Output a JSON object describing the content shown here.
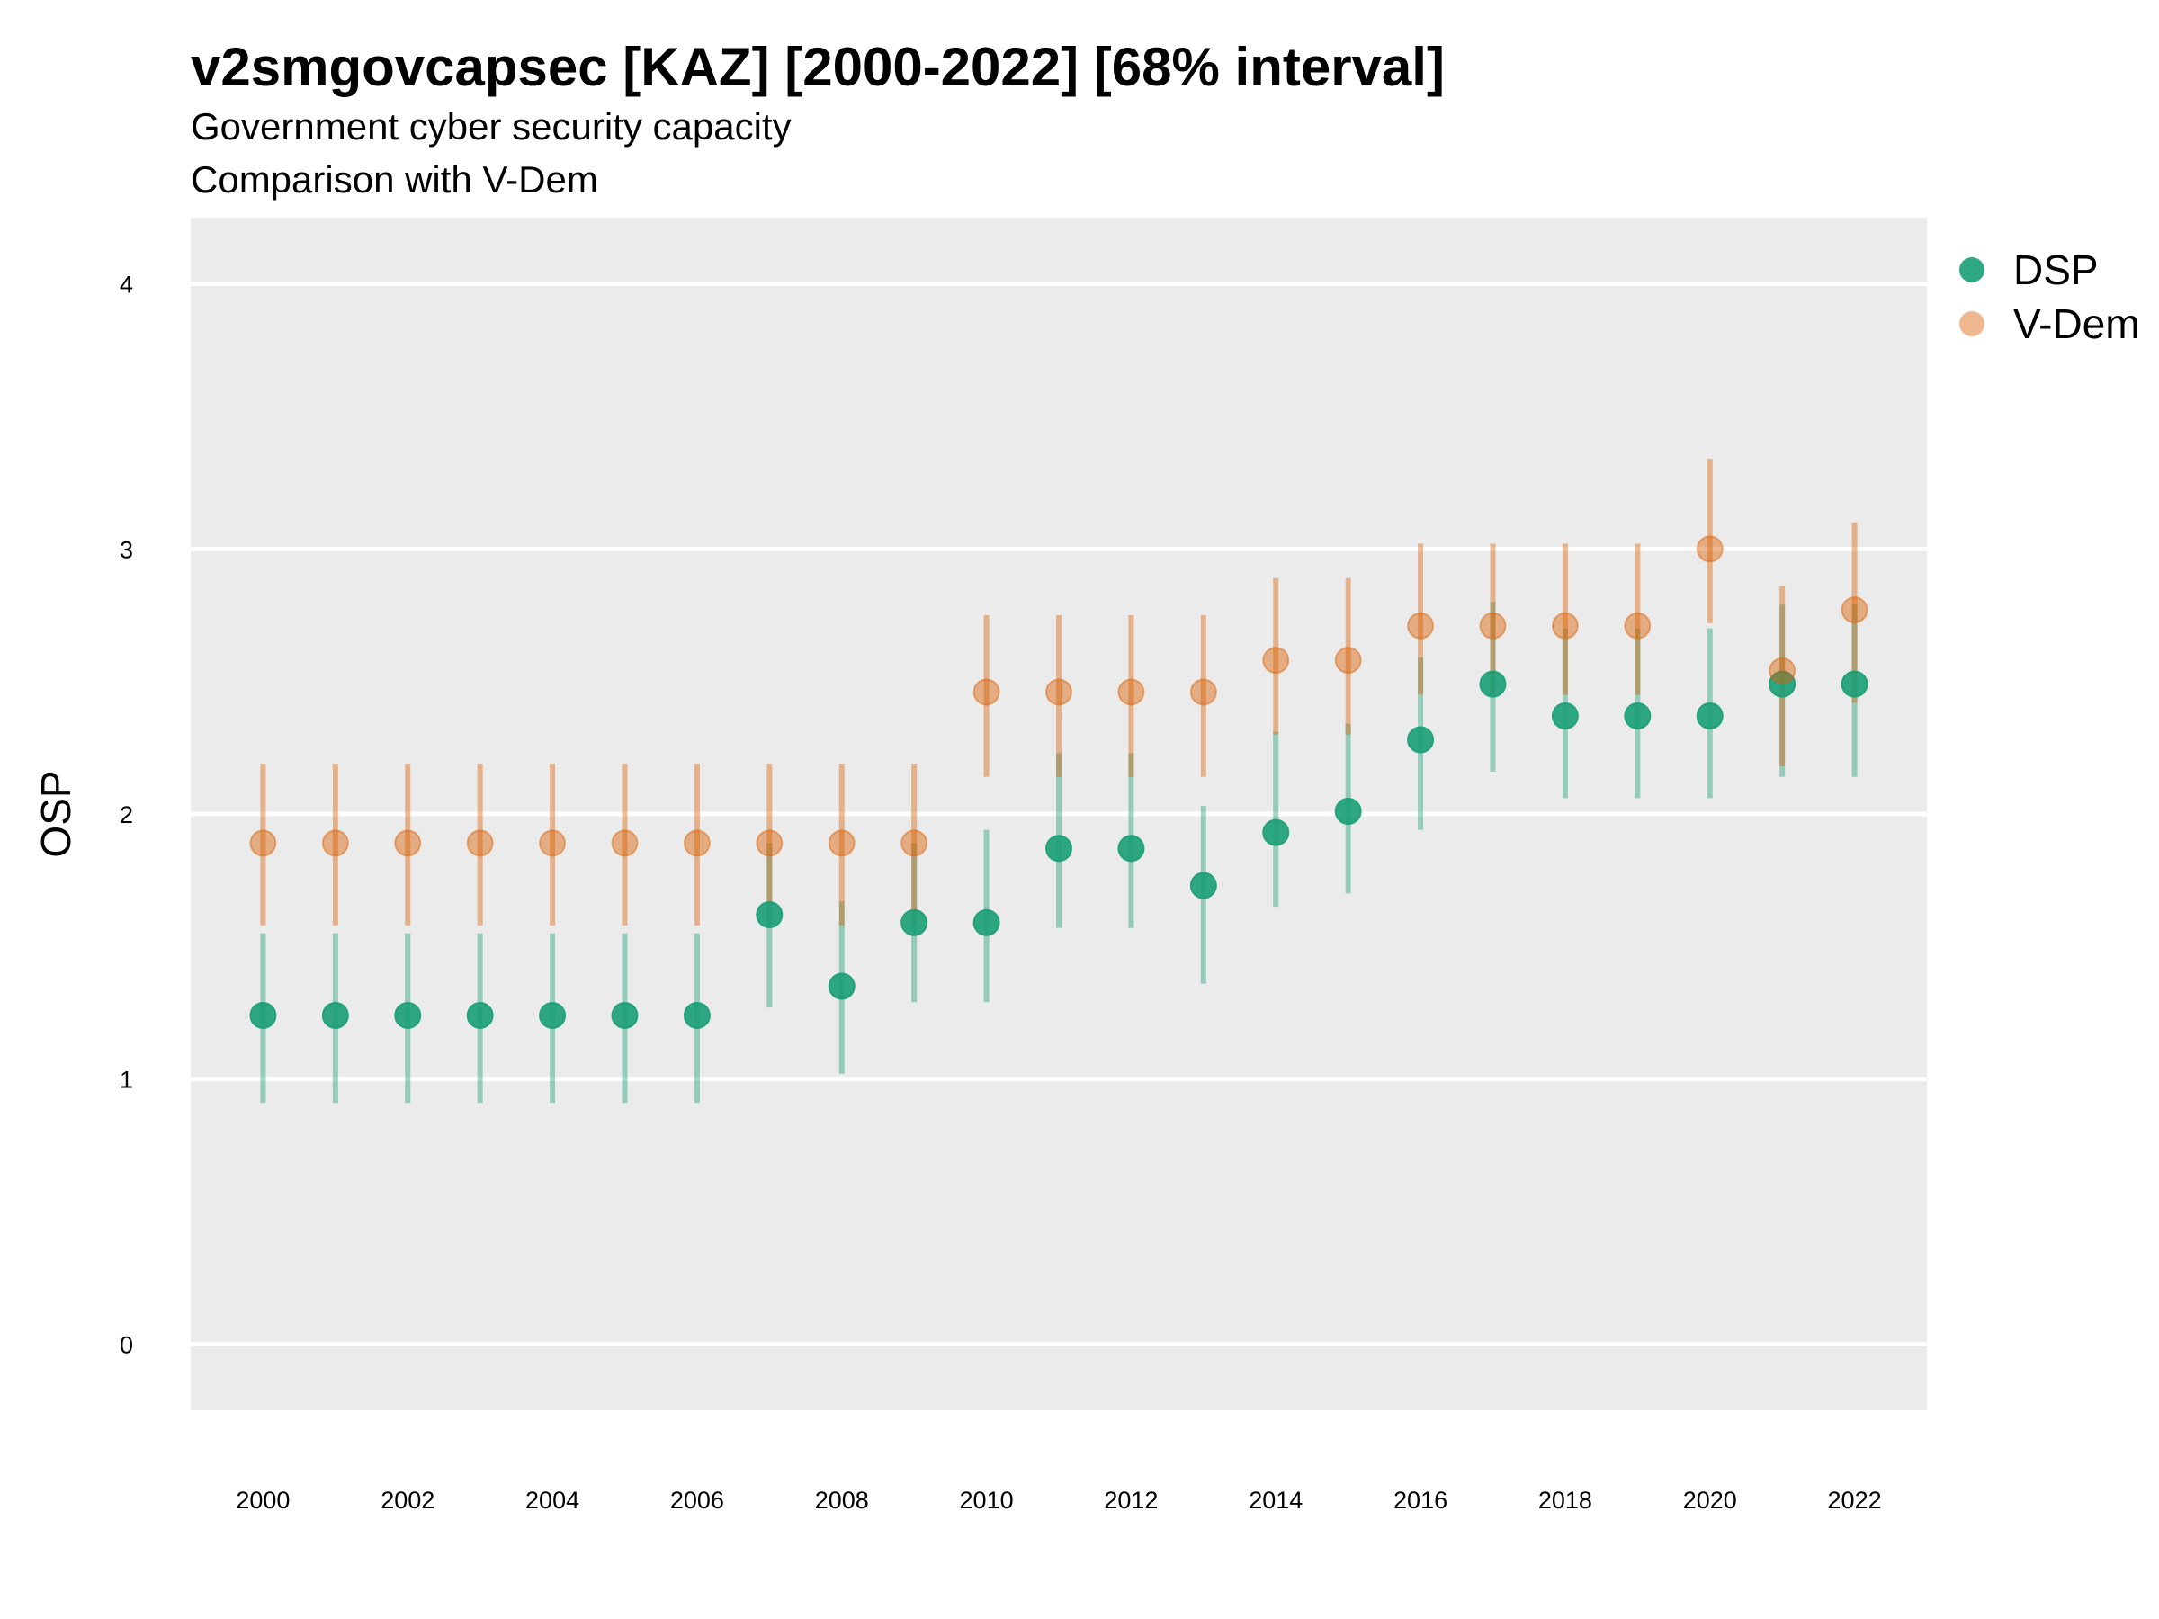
{
  "chart_data": {
    "type": "scatter",
    "title": "v2smgovcapsec [KAZ] [2000-2022] [68% interval]",
    "subtitle": "Government cyber security capacity",
    "subtitle2": "Comparison with V-Dem",
    "ylabel": "OSP",
    "xlabel": "",
    "ylim": [
      -0.25,
      4.25
    ],
    "xlim": [
      1999,
      2023
    ],
    "y_ticks": [
      "0",
      "1",
      "2",
      "3",
      "4"
    ],
    "x_ticks": [
      "2000",
      "2002",
      "2004",
      "2006",
      "2008",
      "2010",
      "2012",
      "2014",
      "2016",
      "2018",
      "2020",
      "2022"
    ],
    "grid": true,
    "legend_position": "right",
    "x": [
      2000,
      2001,
      2002,
      2003,
      2004,
      2005,
      2006,
      2007,
      2008,
      2009,
      2010,
      2011,
      2012,
      2013,
      2014,
      2015,
      2016,
      2017,
      2018,
      2019,
      2020,
      2021,
      2022
    ],
    "series": [
      {
        "name": "DSP",
        "color": "#1b9e77",
        "values": [
          1.24,
          1.24,
          1.24,
          1.24,
          1.24,
          1.24,
          1.24,
          1.62,
          1.35,
          1.59,
          1.59,
          1.87,
          1.87,
          1.73,
          1.93,
          2.01,
          2.28,
          2.49,
          2.37,
          2.37,
          2.37,
          2.49,
          2.49
        ],
        "lower": [
          0.91,
          0.91,
          0.91,
          0.91,
          0.91,
          0.91,
          0.91,
          1.27,
          1.02,
          1.29,
          1.29,
          1.57,
          1.57,
          1.36,
          1.65,
          1.7,
          1.94,
          2.16,
          2.06,
          2.06,
          2.06,
          2.14,
          2.14
        ],
        "upper": [
          1.55,
          1.55,
          1.55,
          1.55,
          1.55,
          1.55,
          1.55,
          1.89,
          1.67,
          1.89,
          1.94,
          2.23,
          2.23,
          2.03,
          2.31,
          2.34,
          2.59,
          2.8,
          2.7,
          2.7,
          2.7,
          2.79,
          2.79
        ]
      },
      {
        "name": "V-Dem",
        "color": "#d95f02",
        "values": [
          1.89,
          1.89,
          1.89,
          1.89,
          1.89,
          1.89,
          1.89,
          1.89,
          1.89,
          1.89,
          2.46,
          2.46,
          2.46,
          2.46,
          2.58,
          2.58,
          2.71,
          2.71,
          2.71,
          2.71,
          3.0,
          2.54,
          2.77
        ],
        "lower": [
          1.58,
          1.58,
          1.58,
          1.58,
          1.58,
          1.58,
          1.58,
          1.58,
          1.58,
          1.58,
          2.14,
          2.14,
          2.14,
          2.14,
          2.3,
          2.3,
          2.45,
          2.45,
          2.45,
          2.45,
          2.72,
          2.18,
          2.42
        ],
        "upper": [
          2.19,
          2.19,
          2.19,
          2.19,
          2.19,
          2.19,
          2.19,
          2.19,
          2.19,
          2.19,
          2.75,
          2.75,
          2.75,
          2.75,
          2.89,
          2.89,
          3.02,
          3.02,
          3.02,
          3.02,
          3.34,
          2.86,
          3.1
        ]
      }
    ]
  }
}
